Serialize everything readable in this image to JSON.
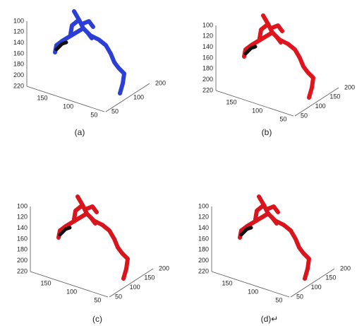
{
  "panels": [
    {
      "caption": "(a)",
      "z_ticks": [
        "100",
        "120",
        "140",
        "160",
        "180",
        "200",
        "220"
      ],
      "left_ticks": [
        "150",
        "100",
        "50"
      ],
      "right_ticks": [
        "50",
        "100",
        "200"
      ]
    },
    {
      "caption": "(b)",
      "z_ticks": [
        "100",
        "120",
        "140",
        "160",
        "180",
        "200",
        "220"
      ],
      "left_ticks": [
        "150",
        "100",
        "50"
      ],
      "right_ticks": [
        "50",
        "100",
        "150",
        "200"
      ]
    },
    {
      "caption": "(c)",
      "z_ticks": [
        "100",
        "120",
        "140",
        "160",
        "180",
        "200",
        "220"
      ],
      "left_ticks": [
        "150",
        "100",
        "50"
      ],
      "right_ticks": [
        "50",
        "100",
        "150",
        "200"
      ]
    },
    {
      "caption": "(d)↵",
      "z_ticks": [
        "100",
        "120",
        "140",
        "160",
        "180",
        "200",
        "220"
      ],
      "left_ticks": [
        "150",
        "100",
        "50"
      ],
      "right_ticks": [
        "50",
        "100",
        "150",
        "200"
      ]
    }
  ]
}
